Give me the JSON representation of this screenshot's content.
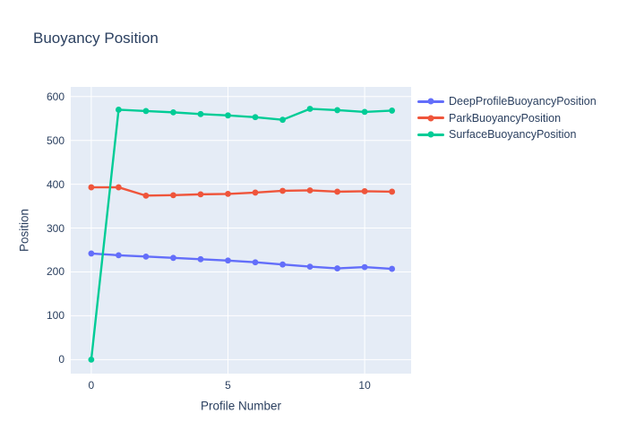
{
  "chart_data": {
    "type": "line",
    "title": "Buoyancy Position",
    "xlabel": "Profile Number",
    "ylabel": "Position",
    "mode": "lines+markers",
    "x": [
      0,
      1,
      2,
      3,
      4,
      5,
      6,
      7,
      8,
      9,
      10,
      11
    ],
    "series": [
      {
        "name": "DeepProfileBuoyancyPosition",
        "color": "#636EFA",
        "values": [
          242,
          238,
          235,
          232,
          229,
          226,
          222,
          217,
          212,
          208,
          211,
          207
        ]
      },
      {
        "name": "ParkBuoyancyPosition",
        "color": "#EF553B",
        "values": [
          393,
          393,
          374,
          375,
          377,
          378,
          381,
          385,
          386,
          383,
          384,
          383
        ]
      },
      {
        "name": "SurfaceBuoyancyPosition",
        "color": "#00CC96",
        "values": [
          0,
          570,
          567,
          564,
          560,
          557,
          553,
          547,
          572,
          569,
          565,
          568
        ]
      }
    ],
    "xticks": [
      0,
      5,
      10
    ],
    "yticks": [
      0,
      100,
      200,
      300,
      400,
      500,
      600
    ],
    "xlim": [
      -0.75,
      11.7
    ],
    "ylim": [
      -32,
      622
    ],
    "grid": true,
    "legend_position": "right",
    "plot_bg": "#E5ECF6",
    "grid_color": "#FFFFFF",
    "text_color": "#2A3F5F",
    "paper_bg": "#FFFFFF"
  }
}
